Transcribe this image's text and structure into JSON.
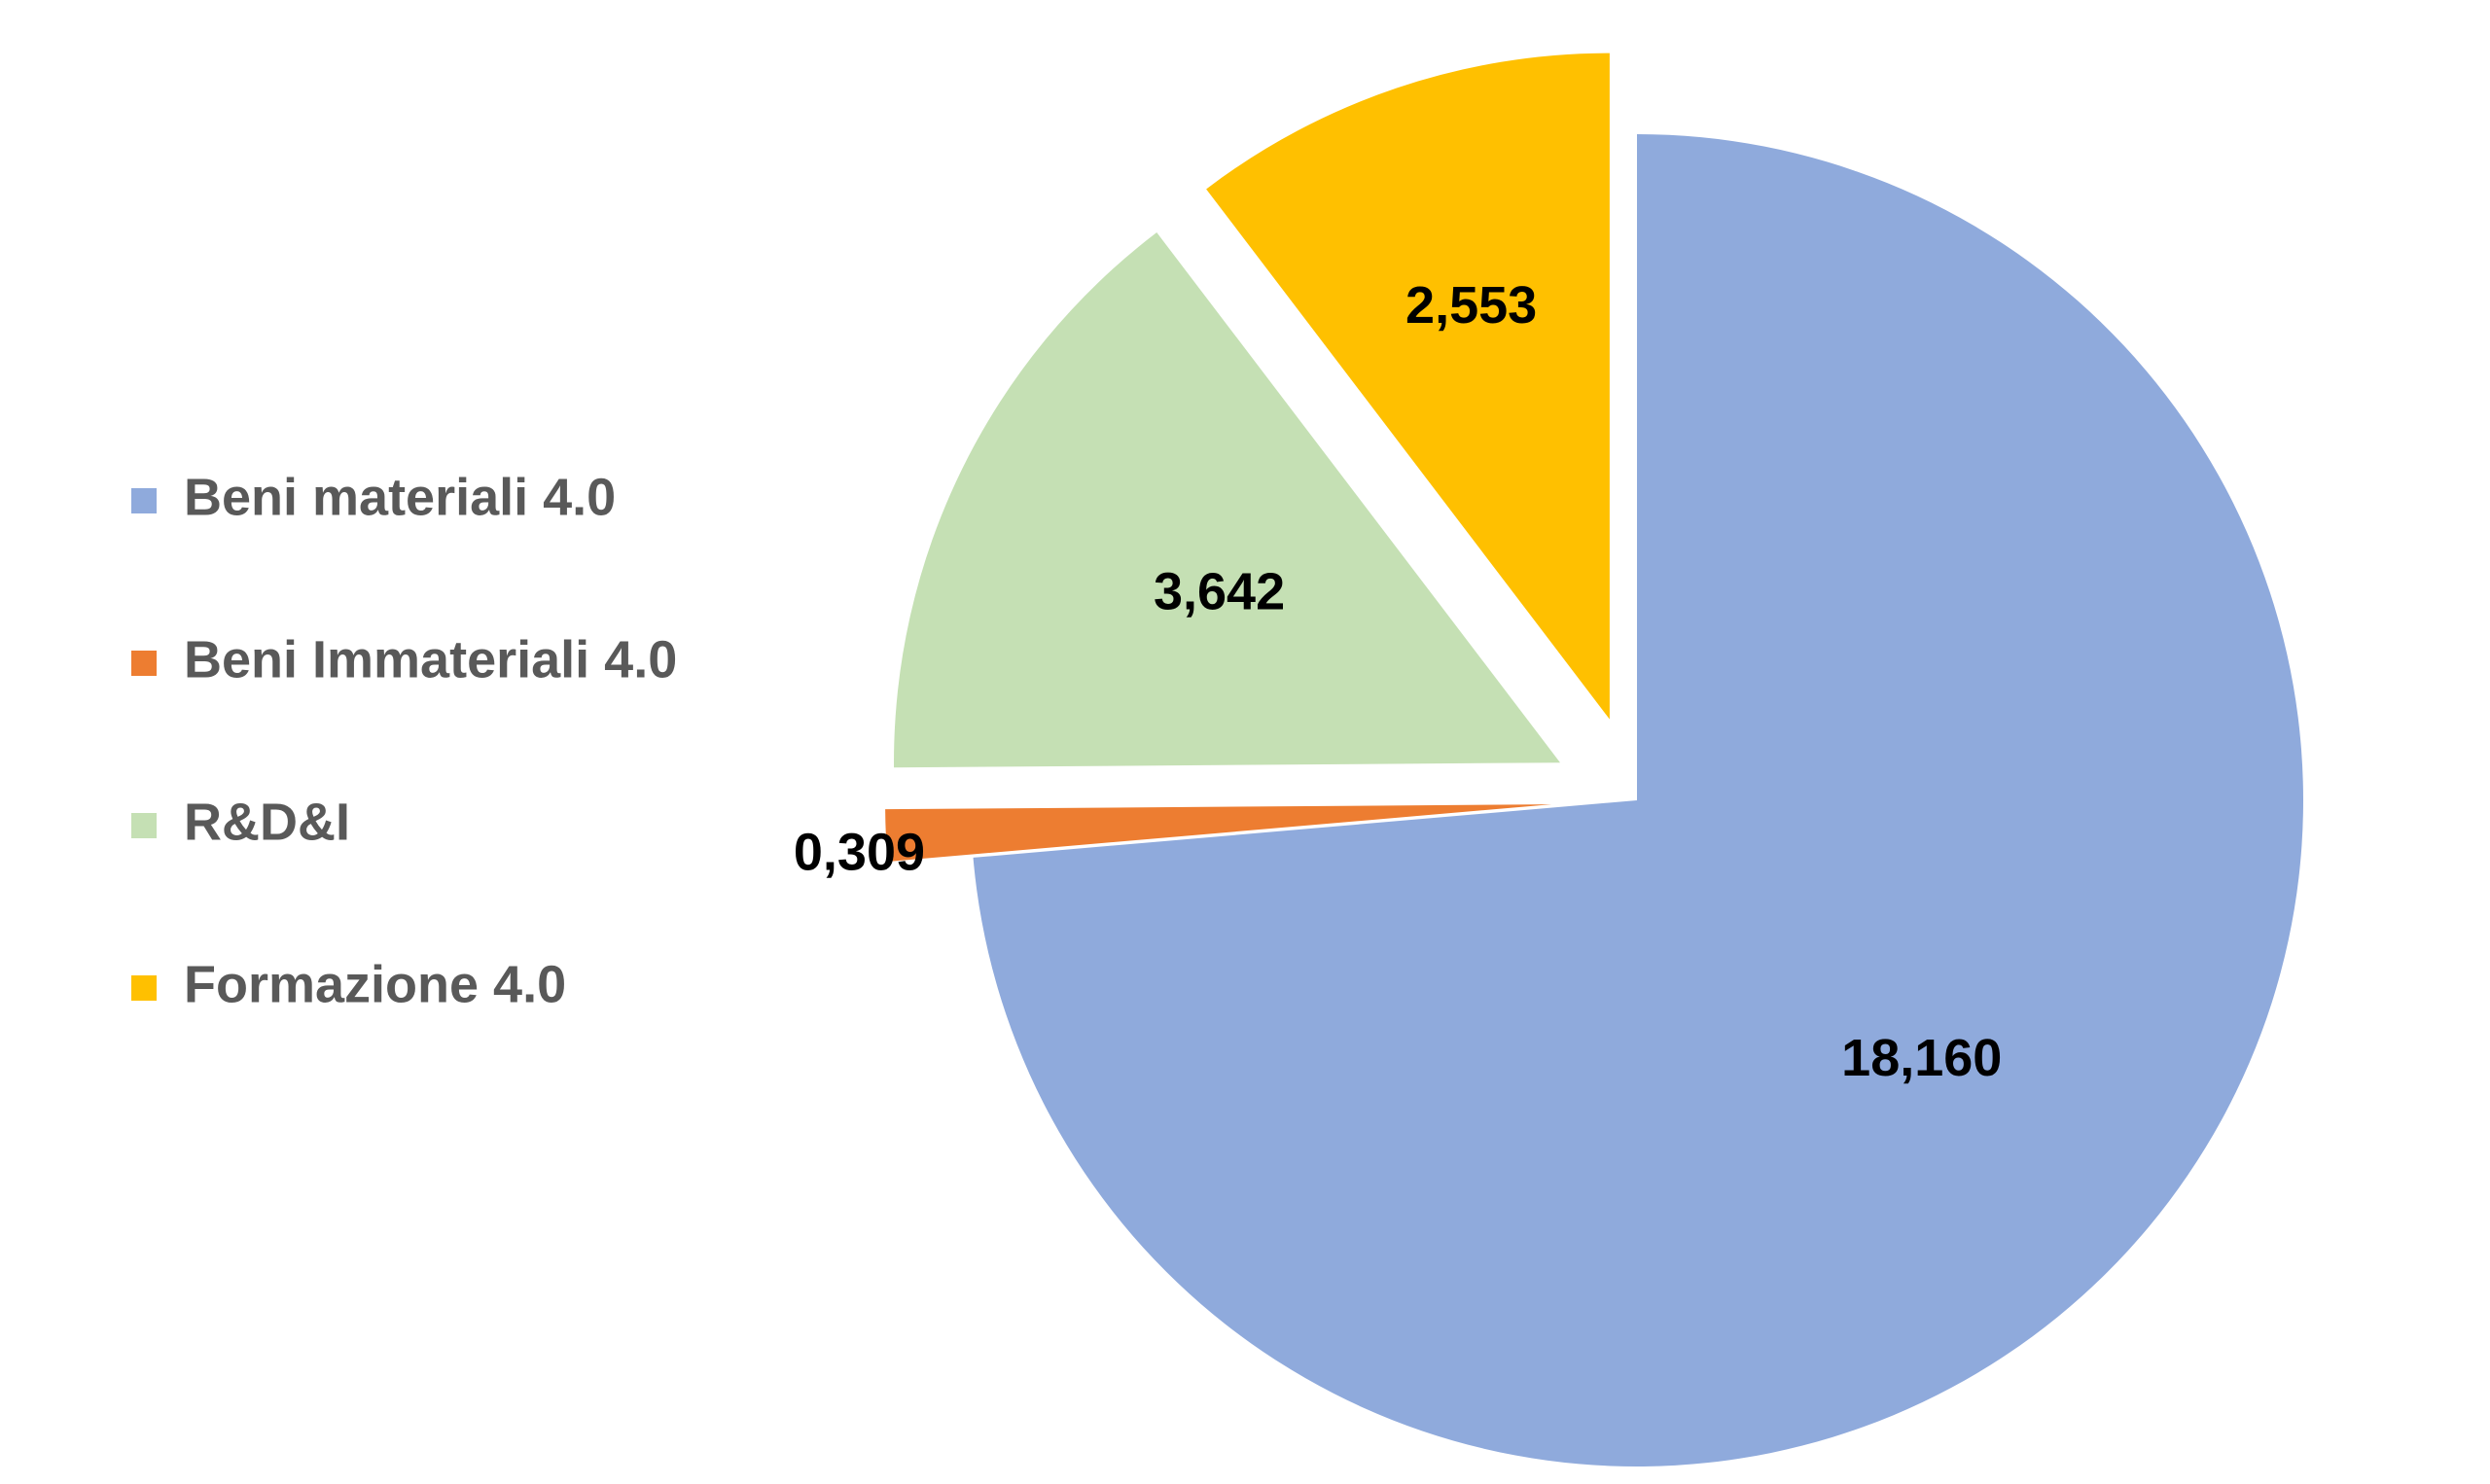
{
  "chart_data": {
    "type": "pie",
    "exploded": true,
    "legend_position": "left",
    "categories": [
      "Beni materiali 4.0",
      "Beni Immateriali 4.0",
      "R&D&I",
      "Formazione 4.0"
    ],
    "values": [
      18.16,
      0.309,
      3.642,
      2.553
    ],
    "value_labels": [
      "18,160",
      "0,309",
      "3,642",
      "2,553"
    ],
    "colors": [
      "#8FAADC",
      "#ED7D31",
      "#C5E0B4",
      "#FFC000"
    ],
    "start_angle_deg": 0,
    "direction": "clockwise"
  }
}
